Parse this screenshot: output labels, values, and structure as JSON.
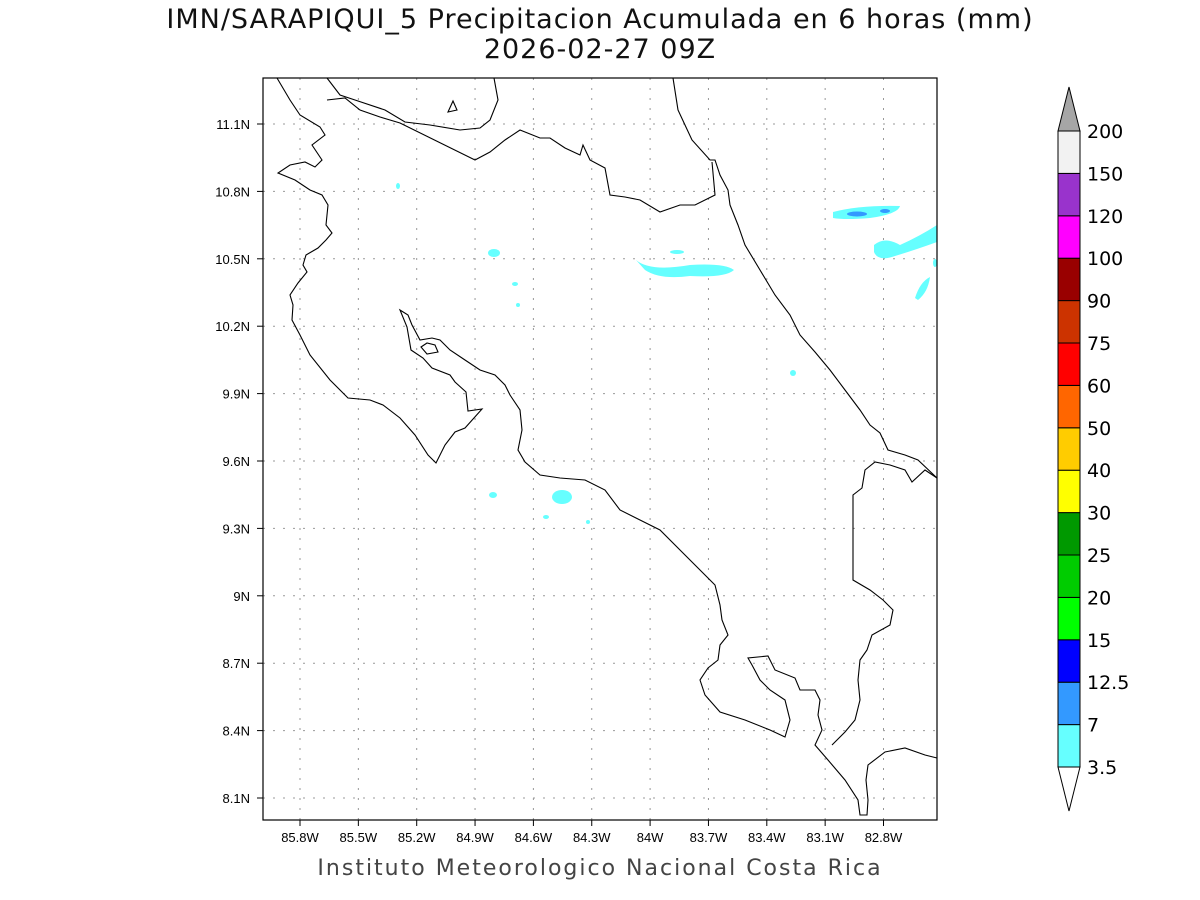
{
  "title": {
    "line1": "IMN/SARAPIQUI_5 Precipitacion Acumulada en 6 horas (mm)",
    "line2": "2026-02-27 09Z"
  },
  "footer": "Instituto Meteorologico Nacional Costa Rica",
  "map": {
    "lon_ticks": [
      "85.8W",
      "85.5W",
      "85.2W",
      "84.9W",
      "84.6W",
      "84.3W",
      "84W",
      "83.7W",
      "83.4W",
      "83.1W",
      "82.8W"
    ],
    "lat_ticks": [
      "11.1N",
      "10.8N",
      "10.5N",
      "10.2N",
      "9.9N",
      "9.6N",
      "9.3N",
      "9N",
      "8.7N",
      "8.4N",
      "8.1N"
    ],
    "grid": "dotted"
  },
  "colorbar": {
    "levels": [
      "3.5",
      "7",
      "12.5",
      "15",
      "20",
      "25",
      "30",
      "40",
      "50",
      "60",
      "75",
      "90",
      "100",
      "120",
      "150",
      "200"
    ],
    "colors": [
      "#66ffff",
      "#3399ff",
      "#0000ff",
      "#00ff00",
      "#00cc00",
      "#009900",
      "#ffff00",
      "#ffcc00",
      "#ff6600",
      "#ff0000",
      "#cc3300",
      "#990000",
      "#ff00ff",
      "#9933cc",
      "#f2f2f2"
    ],
    "under_color": "#ffffff",
    "over_color": "#a6a6a6"
  }
}
